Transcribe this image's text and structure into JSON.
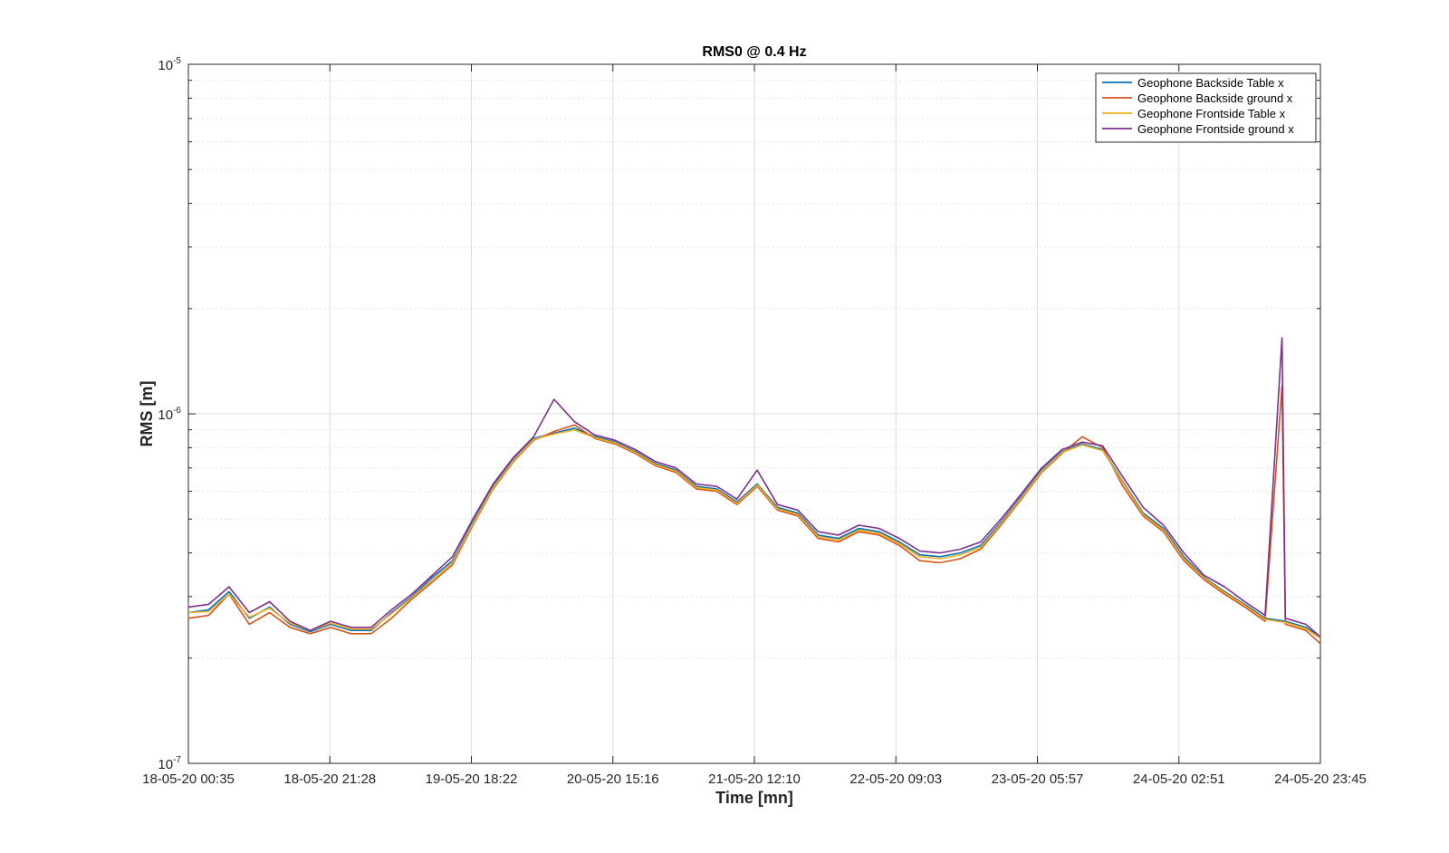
{
  "chart_data": {
    "type": "line",
    "title": "RMS0 @ 0.4 Hz",
    "xlabel": "Time [mn]",
    "ylabel": "RMS [m]",
    "yscale": "log",
    "ylim": [
      1e-07,
      1e-05
    ],
    "ytick_labels": [
      {
        "base": "10",
        "exp": "-7"
      },
      {
        "base": "10",
        "exp": "-6"
      },
      {
        "base": "10",
        "exp": "-5"
      }
    ],
    "xtick_labels": [
      "18-05-20 00:35",
      "18-05-20 21:28",
      "19-05-20 18:22",
      "20-05-20 15:16",
      "21-05-20 12:10",
      "22-05-20 09:03",
      "23-05-20 05:57",
      "24-05-20 02:51",
      "24-05-20 23:45"
    ],
    "grid": true,
    "legend_position": "top-right",
    "x_start": "18-05-20 00:35",
    "x_end": "24-05-20 23:45",
    "x_hours": [
      0,
      3,
      6,
      9,
      12,
      15,
      18,
      21,
      24,
      27,
      30,
      33,
      36,
      39,
      42,
      45,
      48,
      51,
      54,
      57,
      60,
      63,
      66,
      69,
      72,
      75,
      78,
      81,
      84,
      87,
      90,
      93,
      96,
      99,
      102,
      105,
      108,
      111,
      114,
      117,
      120,
      123,
      126,
      129,
      132,
      135,
      138,
      141,
      144,
      147,
      150,
      153,
      156,
      159,
      162,
      165,
      167.17
    ],
    "series": [
      {
        "name": "Geophone Backside Table x",
        "color": "#0072BD",
        "values": [
          2.7e-07,
          2.75e-07,
          3.1e-07,
          2.6e-07,
          2.8e-07,
          2.5e-07,
          2.38e-07,
          2.5e-07,
          2.4e-07,
          2.4e-07,
          2.7e-07,
          3e-07,
          3.4e-07,
          3.8e-07,
          4.9e-07,
          6.2e-07,
          7.4e-07,
          8.5e-07,
          8.8e-07,
          9.1e-07,
          8.6e-07,
          8.3e-07,
          7.8e-07,
          7.2e-07,
          6.9e-07,
          6.2e-07,
          6.1e-07,
          5.6e-07,
          6.3e-07,
          5.4e-07,
          5.2e-07,
          4.5e-07,
          4.4e-07,
          4.7e-07,
          4.6e-07,
          4.3e-07,
          3.95e-07,
          3.9e-07,
          4e-07,
          4.2e-07,
          4.9e-07,
          5.8e-07,
          6.9e-07,
          7.8e-07,
          8.2e-07,
          7.9e-07,
          6.4e-07,
          5.2e-07,
          4.7e-07,
          3.9e-07,
          3.4e-07,
          3.1e-07,
          2.85e-07,
          2.6e-07,
          2.55e-07,
          2.45e-07,
          2.3e-07
        ]
      },
      {
        "name": "Geophone Backside ground x",
        "color": "#D95319",
        "values": [
          2.6e-07,
          2.65e-07,
          3.05e-07,
          2.5e-07,
          2.7e-07,
          2.45e-07,
          2.35e-07,
          2.45e-07,
          2.35e-07,
          2.35e-07,
          2.6e-07,
          2.95e-07,
          3.3e-07,
          3.7e-07,
          4.8e-07,
          6.1e-07,
          7.3e-07,
          8.4e-07,
          8.9e-07,
          9.3e-07,
          8.5e-07,
          8.2e-07,
          7.7e-07,
          7.1e-07,
          6.8e-07,
          6.1e-07,
          6e-07,
          5.5e-07,
          6.2e-07,
          5.3e-07,
          5.1e-07,
          4.4e-07,
          4.3e-07,
          4.6e-07,
          4.5e-07,
          4.2e-07,
          3.8e-07,
          3.75e-07,
          3.85e-07,
          4.1e-07,
          4.8e-07,
          5.7e-07,
          6.8e-07,
          7.7e-07,
          8.6e-07,
          8e-07,
          6.2e-07,
          5.1e-07,
          4.6e-07,
          3.8e-07,
          3.35e-07,
          3.05e-07,
          2.8e-07,
          2.55e-07,
          2.5e-07,
          2.4e-07,
          2.2e-07
        ]
      },
      {
        "name": "Geophone Frontside Table x",
        "color": "#EDB120",
        "values": [
          2.7e-07,
          2.72e-07,
          3.05e-07,
          2.62e-07,
          2.78e-07,
          2.52e-07,
          2.4e-07,
          2.52e-07,
          2.42e-07,
          2.42e-07,
          2.68e-07,
          2.98e-07,
          3.35e-07,
          3.75e-07,
          4.85e-07,
          6.15e-07,
          7.35e-07,
          8.45e-07,
          8.75e-07,
          9e-07,
          8.55e-07,
          8.25e-07,
          7.75e-07,
          7.15e-07,
          6.85e-07,
          6.15e-07,
          6.05e-07,
          5.55e-07,
          6.25e-07,
          5.35e-07,
          5.15e-07,
          4.45e-07,
          4.35e-07,
          4.65e-07,
          4.55e-07,
          4.25e-07,
          3.9e-07,
          3.85e-07,
          3.95e-07,
          4.15e-07,
          4.85e-07,
          5.75e-07,
          6.85e-07,
          7.75e-07,
          8.15e-07,
          7.85e-07,
          6.35e-07,
          5.15e-07,
          4.65e-07,
          3.85e-07,
          3.38e-07,
          3.08e-07,
          2.83e-07,
          2.58e-07,
          2.53e-07,
          2.43e-07,
          2.28e-07
        ]
      },
      {
        "name": "Geophone Frontside ground x",
        "color": "#7E2F8E",
        "values": [
          2.8e-07,
          2.85e-07,
          3.2e-07,
          2.7e-07,
          2.9e-07,
          2.55e-07,
          2.4e-07,
          2.55e-07,
          2.45e-07,
          2.45e-07,
          2.75e-07,
          3.05e-07,
          3.45e-07,
          3.9e-07,
          5e-07,
          6.3e-07,
          7.5e-07,
          8.6e-07,
          1.1e-06,
          9.5e-07,
          8.7e-07,
          8.4e-07,
          7.9e-07,
          7.3e-07,
          7e-07,
          6.3e-07,
          6.2e-07,
          5.7e-07,
          6.9e-07,
          5.5e-07,
          5.3e-07,
          4.6e-07,
          4.5e-07,
          4.8e-07,
          4.7e-07,
          4.4e-07,
          4.05e-07,
          4e-07,
          4.1e-07,
          4.3e-07,
          5e-07,
          5.9e-07,
          7e-07,
          7.9e-07,
          8.3e-07,
          8.1e-07,
          6.6e-07,
          5.4e-07,
          4.8e-07,
          4e-07,
          3.45e-07,
          3.2e-07,
          2.9e-07,
          2.65e-07,
          2.6e-07,
          2.5e-07,
          2.3e-07
        ]
      }
    ],
    "annotations": [
      {
        "series": "Geophone Frontside ground x",
        "x_hours": 161.5,
        "value": 1.65e-06
      },
      {
        "series": "Geophone Backside ground x",
        "x_hours": 161.5,
        "value": 1.2e-06
      }
    ]
  }
}
